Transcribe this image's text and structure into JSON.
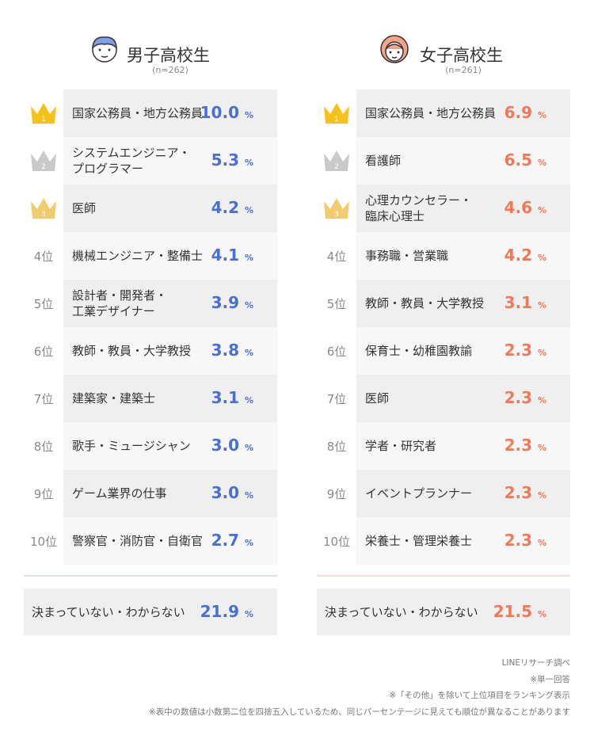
{
  "panels": [
    {
      "title": "男子高校生",
      "n": "(n=262)",
      "unit": "%",
      "rows": [
        {
          "rank": "1",
          "name": "国家公務員・地方公務員",
          "value": "10.0"
        },
        {
          "rank": "2",
          "name": "システムエンジニア・\nプログラマー",
          "value": "5.3"
        },
        {
          "rank": "3",
          "name": "医師",
          "value": "4.2"
        },
        {
          "rank": "4位",
          "name": "機械エンジニア・整備士",
          "value": "4.1"
        },
        {
          "rank": "5位",
          "name": "設計者・開発者・\n工業デザイナー",
          "value": "3.9"
        },
        {
          "rank": "6位",
          "name": "教師・教員・大学教授",
          "value": "3.8"
        },
        {
          "rank": "7位",
          "name": "建築家・建築士",
          "value": "3.1"
        },
        {
          "rank": "8位",
          "name": "歌手・ミュージシャン",
          "value": "3.0"
        },
        {
          "rank": "9位",
          "name": "ゲーム業界の仕事",
          "value": "3.0"
        },
        {
          "rank": "10位",
          "name": "警察官・消防官・自衛官",
          "value": "2.7"
        }
      ],
      "undecided": {
        "name": "決まっていない・わからない",
        "value": "21.9"
      }
    },
    {
      "title": "女子高校生",
      "n": "(n=261)",
      "unit": "%",
      "rows": [
        {
          "rank": "1",
          "name": "国家公務員・地方公務員",
          "value": "6.9"
        },
        {
          "rank": "2",
          "name": "看護師",
          "value": "6.5"
        },
        {
          "rank": "3",
          "name": "心理カウンセラー・\n臨床心理士",
          "value": "4.6"
        },
        {
          "rank": "4位",
          "name": "事務職・営業職",
          "value": "4.2"
        },
        {
          "rank": "5位",
          "name": "教師・教員・大学教授",
          "value": "3.1"
        },
        {
          "rank": "6位",
          "name": "保育士・幼稚園教諭",
          "value": "2.3"
        },
        {
          "rank": "7位",
          "name": "医師",
          "value": "2.3"
        },
        {
          "rank": "8位",
          "name": "学者・研究者",
          "value": "2.3"
        },
        {
          "rank": "9位",
          "name": "イベントプランナー",
          "value": "2.3"
        },
        {
          "rank": "10位",
          "name": "栄養士・管理栄養士",
          "value": "2.3"
        }
      ],
      "undecided": {
        "name": "決まっていない・わからない",
        "value": "21.5"
      }
    }
  ],
  "notes": [
    "LINEリサーチ調べ",
    "※単一回答",
    "※「その他」を除いて上位項目をランキング表示",
    "※表中の数値は小数第二位を四捨五入しているため、同じパーセンテージに見えても順位が異なることがあります"
  ]
}
